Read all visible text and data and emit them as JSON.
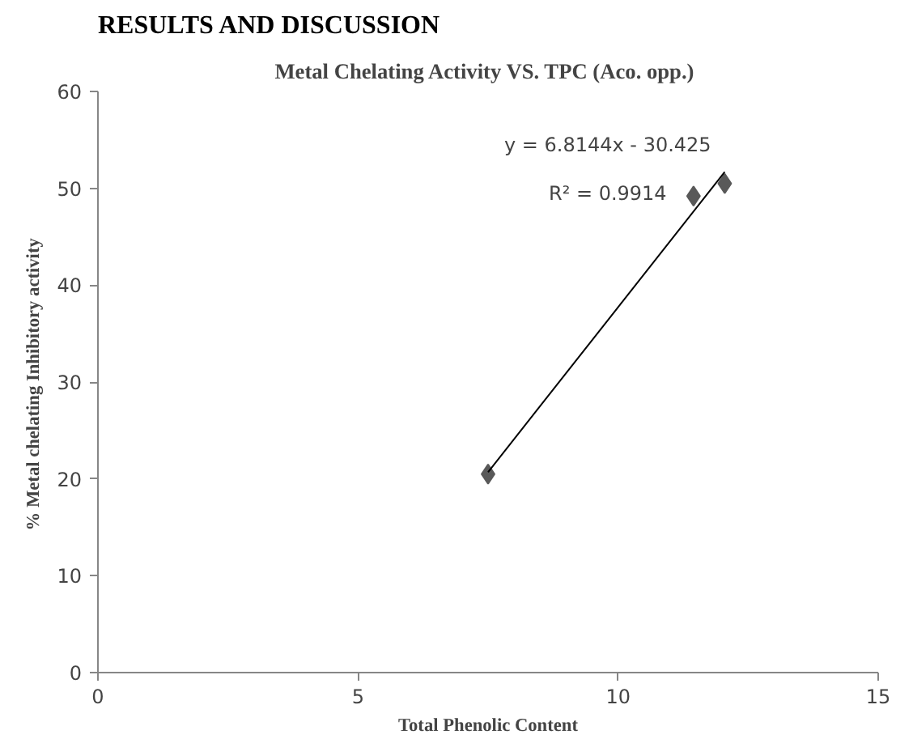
{
  "chart_data": {
    "type": "scatter",
    "title": "Metal Chelating Activity  VS. TPC (Aco. opp.)",
    "xlabel": "Total Phenolic Content",
    "ylabel": "%  Metal chelating Inhibitory activity",
    "annotations": [
      "RESULTS AND DISCUSSION",
      "y = 6.8144x - 30.425",
      "R² = 0.9914"
    ],
    "series": [
      {
        "color": "#595959",
        "x": [
          7.5,
          11.45,
          12.05
        ],
        "values": [
          20.5,
          49.2,
          50.5
        ],
        "marker": "diamond"
      },
      {
        "type": "line",
        "color": "#000000",
        "x": [
          7.5,
          12.05
        ],
        "values": [
          20.7,
          51.7
        ],
        "line_style": "solid"
      }
    ],
    "xlim": [
      0,
      15
    ],
    "ylim": [
      0,
      60
    ],
    "xticks": [
      0,
      5,
      10,
      15
    ],
    "yticks": [
      0,
      10,
      20,
      30,
      40,
      50,
      60
    ],
    "grid": false
  }
}
